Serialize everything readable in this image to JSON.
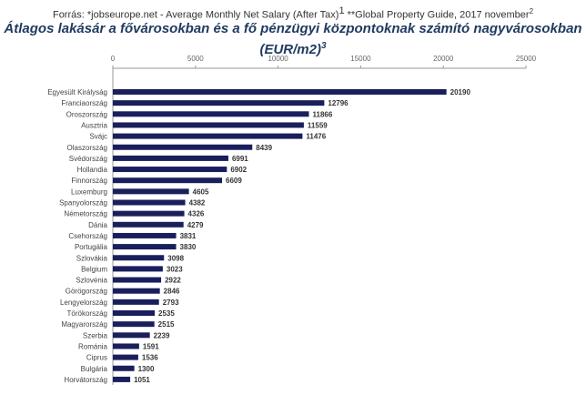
{
  "source": {
    "prefix": "Forrás: *jobseurope.net - Average Monthly Net Salary (After Tax)",
    "sup1": "1",
    "middle": "**Global Property Guide, 2017 november",
    "sup2": "2"
  },
  "title": {
    "line1": "Átlagos lakásár a fővárosokban és a fő pénzügyi központoknak számító nagyvárosokban",
    "line2": "(EUR/m2)",
    "sup": "3"
  },
  "colors": {
    "bar": "#1a1f5c",
    "axis": "#999999",
    "tick_text": "#666666",
    "label_text": "#444444"
  },
  "chart_data": {
    "type": "bar",
    "orientation": "horizontal",
    "title": "Átlagos lakásár a fővárosokban és a fő pénzügyi központoknak számító nagyvárosokban (EUR/m2)",
    "xlim": [
      0,
      25000
    ],
    "x_ticks": [
      0,
      5000,
      10000,
      15000,
      20000,
      25000
    ],
    "x_tick_labels": [
      "0",
      "5000",
      "10000",
      "15000",
      "20000",
      "25000"
    ],
    "axis_position": "top",
    "grid": false,
    "legend": "none",
    "categories": [
      "Egyesült Királyság",
      "Franciaország",
      "Oroszország",
      "Ausztria",
      "Svájc",
      "Olaszország",
      "Svédország",
      "Hollandia",
      "Finnország",
      "Luxemburg",
      "Spanyolország",
      "Németország",
      "Dánia",
      "Csehország",
      "Portugália",
      "Szlovákia",
      "Belgium",
      "Szlovénia",
      "Görögország",
      "Lengyelország",
      "Törökország",
      "Magyarország",
      "Szerbia",
      "Románia",
      "Ciprus",
      "Bulgária",
      "Horvátország"
    ],
    "values": [
      20190,
      12796,
      11866,
      11559,
      11476,
      8439,
      6991,
      6902,
      6609,
      4605,
      4382,
      4326,
      4279,
      3831,
      3830,
      3098,
      3023,
      2922,
      2846,
      2793,
      2535,
      2515,
      2239,
      1591,
      1536,
      1300,
      1051
    ],
    "value_labels": [
      "20190",
      "12796",
      "11866",
      "11559",
      "11476",
      "8439",
      "6991",
      "6902",
      "6609",
      "4605",
      "4382",
      "4326",
      "4279",
      "3831",
      "3830",
      "3098",
      "3023",
      "2922",
      "2846",
      "2793",
      "2535",
      "2515",
      "2239",
      "1591",
      "1536",
      "1300",
      "1051"
    ]
  }
}
